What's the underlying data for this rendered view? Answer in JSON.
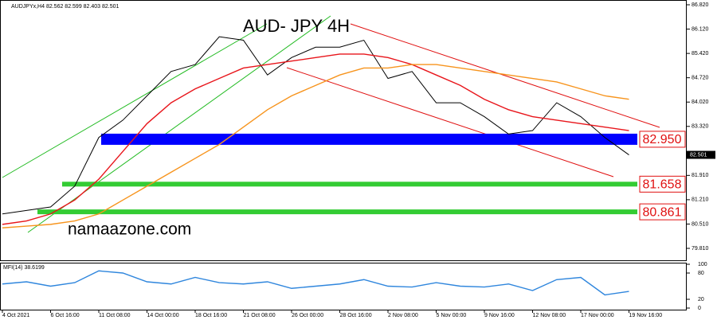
{
  "header": "AUDJPYx,H4 82.562 82.599 82.403 82.501",
  "title": "AUD- JPY  4H",
  "watermark": "namaazone.com",
  "chart_data": [
    {
      "type": "line",
      "categories": [
        "4 Oct 2021",
        null,
        "6 Oct 16:00",
        null,
        "11 Oct 08:00",
        null,
        "14 Oct 00:00",
        null,
        "18 Oct 16:00",
        null,
        "21 Oct 08:00",
        null,
        "26 Oct 00:00",
        null,
        "28 Oct 16:00",
        null,
        "2 Nov 08:00",
        null,
        "5 Nov 00:00",
        null,
        "9 Nov 16:00",
        null,
        "12 Nov 08:00",
        null,
        "17 Nov 00:00",
        null,
        "19 Nov 16:00"
      ],
      "series": [
        {
          "color": "#000000",
          "values": [
            80.8,
            80.9,
            81.0,
            81.6,
            83.0,
            83.5,
            84.2,
            84.9,
            85.1,
            85.9,
            85.8,
            84.8,
            85.3,
            85.6,
            85.6,
            85.8,
            84.7,
            84.9,
            84.0,
            84.0,
            83.6,
            83.1,
            83.2,
            84.0,
            83.6,
            83.0,
            82.5
          ]
        },
        {
          "color": "#e8151b",
          "values": [
            80.5,
            80.6,
            80.8,
            81.2,
            81.8,
            82.6,
            83.4,
            84.0,
            84.4,
            84.7,
            85.0,
            85.1,
            85.2,
            85.3,
            85.4,
            85.4,
            85.3,
            85.1,
            84.8,
            84.5,
            84.1,
            83.8,
            83.6,
            83.5,
            83.4,
            83.3,
            83.2
          ]
        },
        {
          "color": "#f7941d",
          "values": [
            80.4,
            80.45,
            80.5,
            80.6,
            80.8,
            81.2,
            81.6,
            82.0,
            82.4,
            82.8,
            83.3,
            83.8,
            84.2,
            84.5,
            84.8,
            85.0,
            85.0,
            85.1,
            85.1,
            85.0,
            84.9,
            84.8,
            84.7,
            84.6,
            84.4,
            84.2,
            84.1
          ]
        }
      ],
      "ylim": [
        79.81,
        86.82
      ],
      "yticks": [
        {
          "value": 86.82,
          "label": "86.820"
        },
        {
          "value": 86.12,
          "label": "86.120"
        },
        {
          "value": 85.42,
          "label": "85.420"
        },
        {
          "value": 84.72,
          "label": "84.720"
        },
        {
          "value": 84.02,
          "label": "84.020"
        },
        {
          "value": 83.32,
          "label": "83.320"
        },
        {
          "value": 81.91,
          "label": "81.910"
        },
        {
          "value": 81.21,
          "label": "81.210"
        },
        {
          "value": 80.51,
          "label": "80.510"
        },
        {
          "value": 79.81,
          "label": "79.810"
        }
      ],
      "last_price": {
        "value": 82.501,
        "label": "82.501"
      },
      "levels": {
        "values": [
          82.95,
          81.658,
          80.861
        ],
        "value_labels": [
          "82.950",
          "81.658",
          "80.861"
        ],
        "colors": [
          "#0000ff",
          "#33cc33",
          "#33cc33"
        ]
      }
    },
    {
      "type": "line",
      "title": "MFI(14) 38.6199",
      "series": [
        {
          "color": "#2f86dd",
          "values": [
            55,
            60,
            50,
            58,
            85,
            80,
            60,
            55,
            70,
            58,
            55,
            60,
            45,
            50,
            55,
            65,
            50,
            48,
            58,
            50,
            48,
            55,
            40,
            65,
            70,
            30,
            38
          ]
        }
      ],
      "ylim": [
        0,
        100
      ],
      "yticks": [
        100,
        80,
        20,
        0
      ]
    }
  ]
}
